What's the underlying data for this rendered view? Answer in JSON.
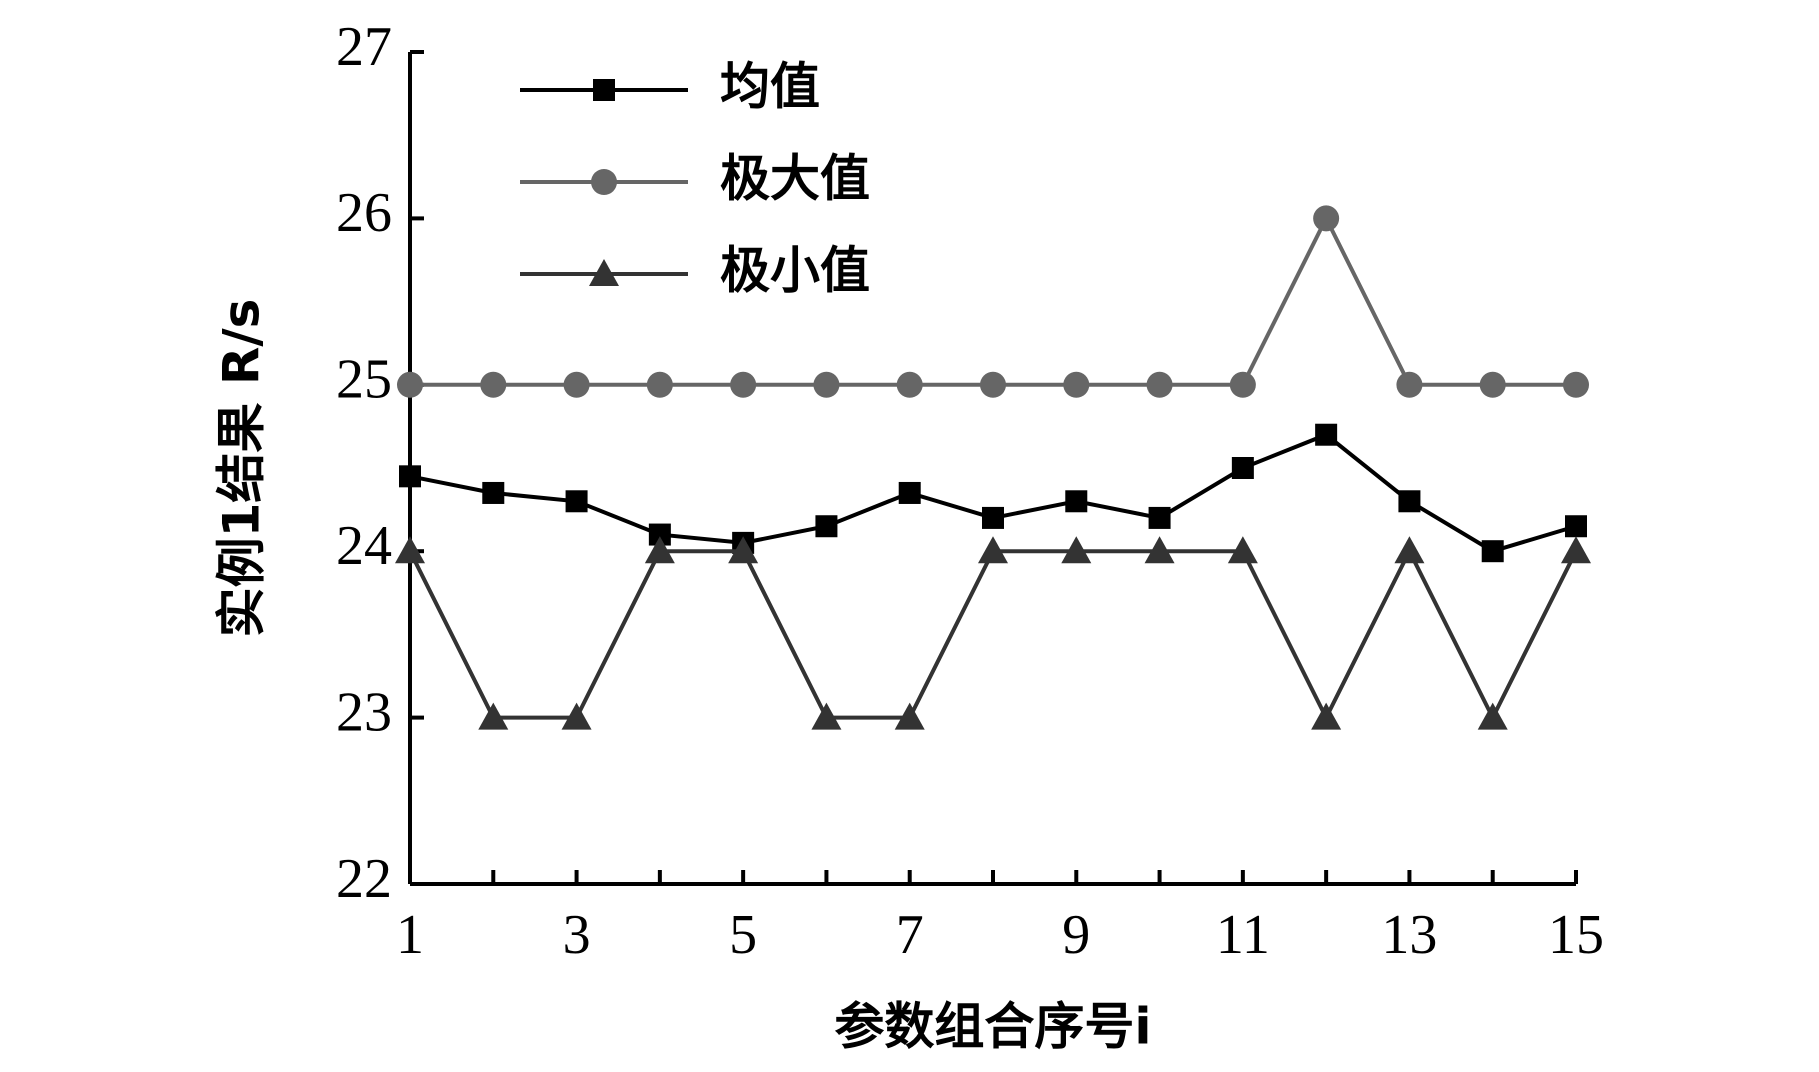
{
  "chart_data": {
    "type": "line",
    "x_label": "参数组合序号i",
    "y_label": "实例1结果 R/s",
    "x": [
      1,
      2,
      3,
      4,
      5,
      6,
      7,
      8,
      9,
      10,
      11,
      12,
      13,
      14,
      15
    ],
    "xlim": [
      1,
      15
    ],
    "xticks": [
      1,
      3,
      5,
      7,
      9,
      11,
      13,
      15
    ],
    "ylim": [
      22,
      27
    ],
    "yticks": [
      22,
      23,
      24,
      25,
      26,
      27
    ],
    "legend": "upper left",
    "series": [
      {
        "name": "均值",
        "color": "#000000",
        "marker": "square",
        "values": [
          24.45,
          24.35,
          24.3,
          24.1,
          24.05,
          24.15,
          24.35,
          24.2,
          24.3,
          24.2,
          24.5,
          24.7,
          24.3,
          24.0,
          24.15
        ]
      },
      {
        "name": "极大值",
        "color": "#666666",
        "marker": "circle",
        "values": [
          25,
          25,
          25,
          25,
          25,
          25,
          25,
          25,
          25,
          25,
          25,
          26,
          25,
          25,
          25
        ]
      },
      {
        "name": "极小值",
        "color": "#333333",
        "marker": "triangle",
        "values": [
          24,
          23,
          23,
          24,
          24,
          23,
          23,
          24,
          24,
          24,
          24,
          23,
          24,
          23,
          24
        ]
      }
    ]
  }
}
